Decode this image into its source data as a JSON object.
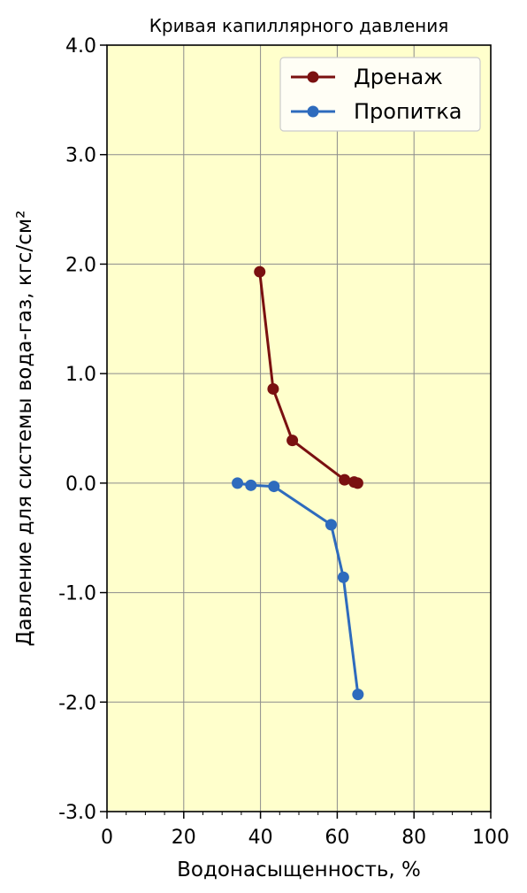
{
  "chart_data": {
    "type": "line",
    "title": "Кривая капиллярного давления",
    "xlabel": "Водонасыщенность, %",
    "ylabel": "Давление для системы вода-газ, кгс/см²",
    "xlim": [
      0,
      100
    ],
    "ylim": [
      -3.0,
      4.0
    ],
    "x_ticks": [
      0,
      20,
      40,
      60,
      80,
      100
    ],
    "x_tick_labels": [
      "0",
      "20",
      "40",
      "60",
      "80",
      "100"
    ],
    "y_ticks": [
      -3,
      -2,
      -1,
      0,
      1,
      2,
      3,
      4
    ],
    "y_tick_labels": [
      "-3.0",
      "-2.0",
      "-1.0",
      "0.0",
      "1.0",
      "2.0",
      "3.0",
      "4.0"
    ],
    "grid": true,
    "legend_position": "top-right",
    "plot_background": "#ffffcc",
    "series": [
      {
        "name": "Дренаж",
        "color": "#7a1010",
        "x": [
          39.8,
          43.3,
          48.3,
          61.9,
          64.4,
          65.3
        ],
        "y": [
          1.93,
          0.86,
          0.39,
          0.03,
          0.01,
          0.0
        ]
      },
      {
        "name": "Пропитка",
        "color": "#2e6bbd",
        "x": [
          34.0,
          37.5,
          43.5,
          58.4,
          61.6,
          65.4
        ],
        "y": [
          0.0,
          -0.02,
          -0.03,
          -0.38,
          -0.86,
          -1.93
        ]
      }
    ]
  }
}
